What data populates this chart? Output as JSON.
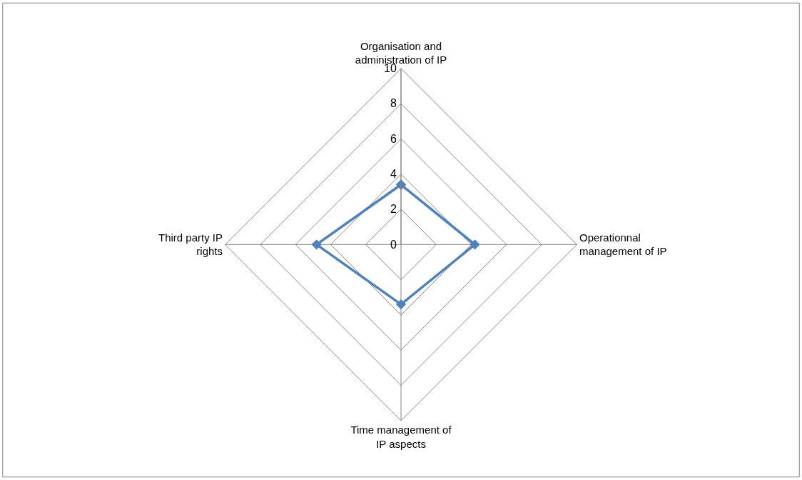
{
  "chart_data": {
    "type": "radar",
    "categories": [
      "Organisation and administration of IP",
      "Operationnal management of IP",
      "Time management of IP aspects",
      "Third party IP rights"
    ],
    "series": [
      {
        "color": "#4f81bd",
        "values": [
          3.4,
          4.2,
          3.4,
          4.8
        ]
      }
    ],
    "ylim": [
      0,
      10
    ],
    "yticks": [
      0,
      2,
      4,
      6,
      8,
      10
    ],
    "grid": true,
    "marker": "diamond",
    "line_style": "solid"
  }
}
